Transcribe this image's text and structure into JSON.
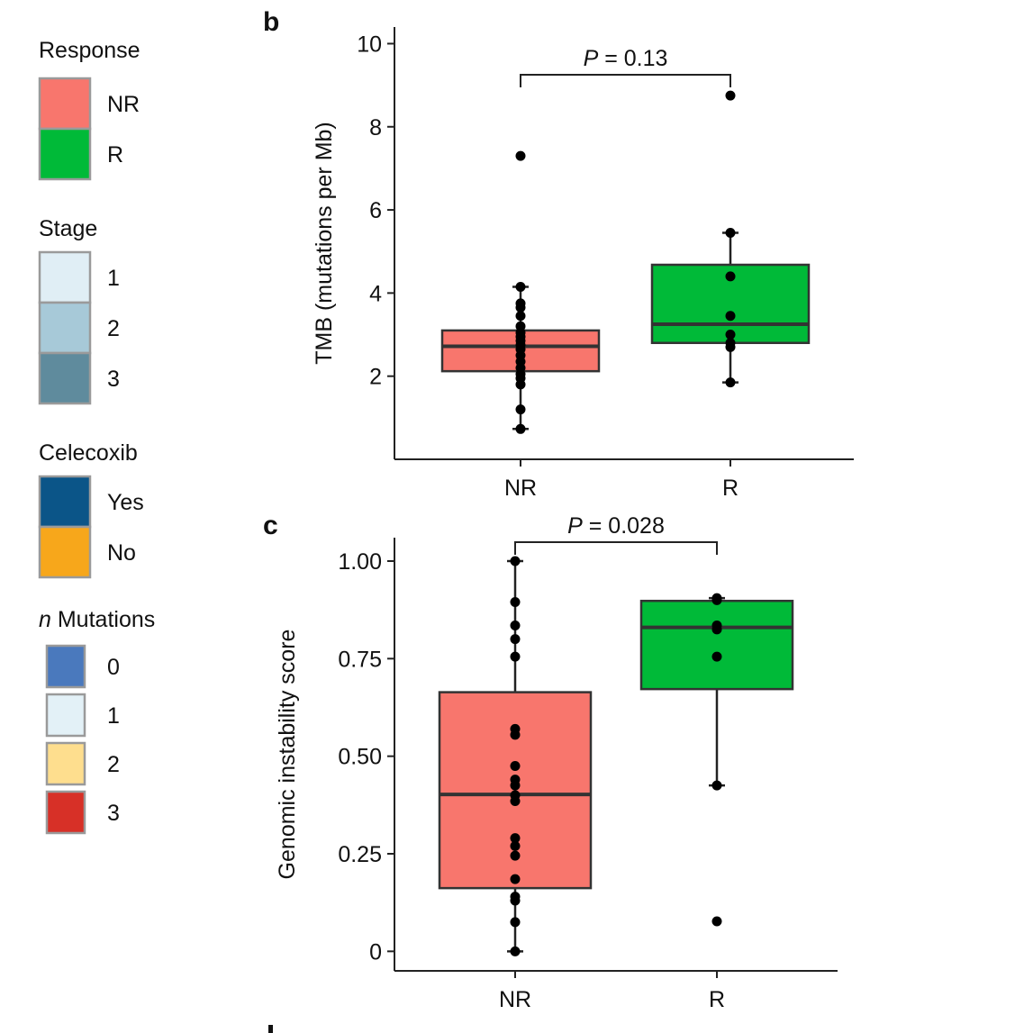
{
  "legend": {
    "groups": [
      {
        "title": "Response",
        "title_italic": "",
        "items": [
          {
            "label": "NR",
            "color": "#F8766D"
          },
          {
            "label": "R",
            "color": "#00BA38"
          }
        ]
      },
      {
        "title": "Stage",
        "title_italic": "",
        "items": [
          {
            "label": "1",
            "color": "#E0EEF5"
          },
          {
            "label": "2",
            "color": "#A7C9D8"
          },
          {
            "label": "3",
            "color": "#5F8B9D"
          }
        ]
      },
      {
        "title": "Celecoxib",
        "title_italic": "",
        "items": [
          {
            "label": "Yes",
            "color": "#0B5588"
          },
          {
            "label": "No",
            "color": "#F7A71B"
          }
        ]
      },
      {
        "title": "Mutations",
        "title_italic": "n",
        "items": [
          {
            "label": "0",
            "color": "#4A79BD"
          },
          {
            "label": "1",
            "color": "#E3F1F7"
          },
          {
            "label": "2",
            "color": "#FEDE8E"
          },
          {
            "label": "3",
            "color": "#D73027"
          }
        ]
      }
    ]
  },
  "chart_data": [
    {
      "panel": "b",
      "type": "box",
      "ylabel": "TMB (mutations per Mb)",
      "categories": [
        "NR",
        "R"
      ],
      "ylim": [
        0,
        10.4
      ],
      "yticks": [
        2,
        4,
        6,
        8,
        10
      ],
      "ytick_labels": [
        "2",
        "4",
        "6",
        "8",
        "10"
      ],
      "annotation": {
        "prefix": "P",
        "text": " = 0.13"
      },
      "boxes": [
        {
          "name": "NR",
          "color": "#F8766D",
          "q1": 2.12,
          "median": 2.72,
          "q3": 3.1,
          "whisker_low": 0.73,
          "whisker_high": 4.15
        },
        {
          "name": "R",
          "color": "#00BA38",
          "q1": 2.8,
          "median": 3.25,
          "q3": 4.68,
          "whisker_low": 1.85,
          "whisker_high": 5.45
        }
      ],
      "points": [
        {
          "category": "NR",
          "values": [
            7.3,
            4.15,
            3.75,
            3.65,
            3.45,
            3.2,
            3.05,
            2.95,
            2.85,
            2.75,
            2.65,
            2.5,
            2.35,
            2.2,
            2.05,
            1.95,
            1.8,
            1.2,
            0.73
          ]
        },
        {
          "category": "R",
          "values": [
            8.75,
            5.45,
            4.4,
            3.45,
            3.0,
            2.8,
            2.7,
            1.85
          ]
        }
      ]
    },
    {
      "panel": "c",
      "type": "box",
      "ylabel": "Genomic instability score",
      "categories": [
        "NR",
        "R"
      ],
      "ylim": [
        -0.05,
        1.06
      ],
      "yticks": [
        0,
        0.25,
        0.5,
        0.75,
        1.0
      ],
      "ytick_labels": [
        "0",
        "0.25",
        "0.50",
        "0.75",
        "1.00"
      ],
      "annotation": {
        "prefix": "P",
        "text": " = 0.028"
      },
      "boxes": [
        {
          "name": "NR",
          "color": "#F8766D",
          "q1": 0.162,
          "median": 0.402,
          "q3": 0.664,
          "whisker_low": 0.0,
          "whisker_high": 1.0
        },
        {
          "name": "R",
          "color": "#00BA38",
          "q1": 0.672,
          "median": 0.83,
          "q3": 0.898,
          "whisker_low": 0.425,
          "whisker_high": 0.905
        }
      ],
      "points": [
        {
          "category": "NR",
          "values": [
            1.0,
            0.895,
            0.835,
            0.8,
            0.755,
            0.57,
            0.555,
            0.475,
            0.44,
            0.425,
            0.4,
            0.385,
            0.29,
            0.27,
            0.245,
            0.185,
            0.14,
            0.13,
            0.075,
            0.0
          ]
        },
        {
          "category": "R",
          "values": [
            0.905,
            0.9,
            0.835,
            0.825,
            0.755,
            0.425,
            0.077
          ]
        }
      ]
    }
  ],
  "panels": {
    "b": {
      "letter": "b"
    },
    "c": {
      "letter": "c"
    }
  }
}
